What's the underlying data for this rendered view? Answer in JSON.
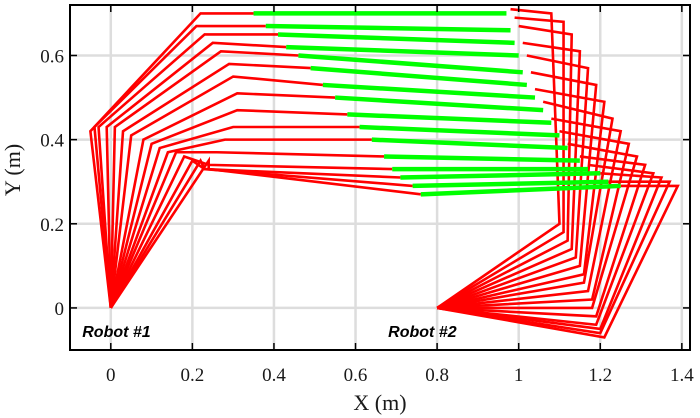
{
  "chart_data": {
    "type": "line",
    "title": "",
    "xlabel": "X (m)",
    "ylabel": "Y (m)",
    "xlim": [
      -0.1,
      1.42
    ],
    "ylim": [
      -0.1,
      0.72
    ],
    "xticks": [
      0,
      0.2,
      0.4,
      0.6,
      0.8,
      1,
      1.2,
      1.4
    ],
    "xtick_labels": [
      "0",
      "0.2",
      "0.4",
      "0.6",
      "0.8",
      "1",
      "1.2",
      "1.4"
    ],
    "yticks": [
      0,
      0.2,
      0.4,
      0.6
    ],
    "ytick_labels": [
      "0",
      "0.2",
      "0.4",
      "0.6"
    ],
    "grid": true,
    "colors": {
      "arm": "#ff0000",
      "object": "#00ff00",
      "grid": "#dddddd",
      "axis": "#000000"
    },
    "annotations": [
      {
        "text": "Robot #1",
        "x": -0.07,
        "y": -0.055
      },
      {
        "text": "Robot #2",
        "x": 0.68,
        "y": -0.055
      }
    ],
    "robot1": {
      "base": [
        0,
        0
      ],
      "configs": [
        [
          [
            -0.05,
            0.42
          ],
          [
            0.22,
            0.7
          ],
          [
            0.35,
            0.7
          ]
        ],
        [
          [
            -0.04,
            0.43
          ],
          [
            0.21,
            0.67
          ],
          [
            0.38,
            0.67
          ]
        ],
        [
          [
            -0.03,
            0.43
          ],
          [
            0.23,
            0.65
          ],
          [
            0.41,
            0.65
          ]
        ],
        [
          [
            -0.01,
            0.43
          ],
          [
            0.25,
            0.63
          ],
          [
            0.43,
            0.62
          ]
        ],
        [
          [
            0.01,
            0.43
          ],
          [
            0.27,
            0.61
          ],
          [
            0.46,
            0.6
          ]
        ],
        [
          [
            0.03,
            0.42
          ],
          [
            0.29,
            0.58
          ],
          [
            0.49,
            0.57
          ]
        ],
        [
          [
            0.05,
            0.41
          ],
          [
            0.3,
            0.55
          ],
          [
            0.52,
            0.53
          ]
        ],
        [
          [
            0.08,
            0.4
          ],
          [
            0.31,
            0.51
          ],
          [
            0.55,
            0.5
          ]
        ],
        [
          [
            0.1,
            0.39
          ],
          [
            0.31,
            0.47
          ],
          [
            0.58,
            0.46
          ]
        ],
        [
          [
            0.12,
            0.38
          ],
          [
            0.3,
            0.43
          ],
          [
            0.61,
            0.43
          ]
        ],
        [
          [
            0.14,
            0.37
          ],
          [
            0.28,
            0.4
          ],
          [
            0.64,
            0.4
          ]
        ],
        [
          [
            0.16,
            0.37
          ],
          [
            0.26,
            0.37
          ],
          [
            0.67,
            0.36
          ]
        ],
        [
          [
            0.18,
            0.36
          ],
          [
            0.24,
            0.34
          ],
          [
            0.69,
            0.33
          ]
        ],
        [
          [
            0.2,
            0.35
          ],
          [
            0.23,
            0.33
          ],
          [
            0.71,
            0.31
          ]
        ],
        [
          [
            0.22,
            0.35
          ],
          [
            0.23,
            0.33
          ],
          [
            0.74,
            0.29
          ]
        ],
        [
          [
            0.24,
            0.35
          ],
          [
            0.24,
            0.33
          ],
          [
            0.76,
            0.27
          ]
        ]
      ]
    },
    "robot2": {
      "base": [
        0.8,
        0
      ],
      "configs": [
        [
          [
            1.21,
            -0.07
          ],
          [
            1.39,
            0.29
          ],
          [
            1.25,
            0.29
          ]
        ],
        [
          [
            1.2,
            -0.06
          ],
          [
            1.37,
            0.3
          ],
          [
            1.22,
            0.3
          ]
        ],
        [
          [
            1.2,
            -0.05
          ],
          [
            1.35,
            0.31
          ],
          [
            1.2,
            0.32
          ]
        ],
        [
          [
            1.19,
            -0.04
          ],
          [
            1.33,
            0.32
          ],
          [
            1.17,
            0.34
          ]
        ],
        [
          [
            1.19,
            -0.02
          ],
          [
            1.31,
            0.34
          ],
          [
            1.15,
            0.36
          ]
        ],
        [
          [
            1.18,
            0.0
          ],
          [
            1.29,
            0.36
          ],
          [
            1.12,
            0.39
          ]
        ],
        [
          [
            1.18,
            0.02
          ],
          [
            1.27,
            0.39
          ],
          [
            1.1,
            0.42
          ]
        ],
        [
          [
            1.17,
            0.04
          ],
          [
            1.25,
            0.42
          ],
          [
            1.08,
            0.45
          ]
        ],
        [
          [
            1.16,
            0.06
          ],
          [
            1.23,
            0.45
          ],
          [
            1.06,
            0.49
          ]
        ],
        [
          [
            1.16,
            0.08
          ],
          [
            1.21,
            0.49
          ],
          [
            1.04,
            0.52
          ]
        ],
        [
          [
            1.15,
            0.1
          ],
          [
            1.19,
            0.53
          ],
          [
            1.03,
            0.56
          ]
        ],
        [
          [
            1.14,
            0.12
          ],
          [
            1.17,
            0.57
          ],
          [
            1.02,
            0.6
          ]
        ],
        [
          [
            1.13,
            0.14
          ],
          [
            1.15,
            0.61
          ],
          [
            1.01,
            0.63
          ]
        ],
        [
          [
            1.12,
            0.16
          ],
          [
            1.13,
            0.65
          ],
          [
            1.0,
            0.67
          ]
        ],
        [
          [
            1.11,
            0.18
          ],
          [
            1.11,
            0.68
          ],
          [
            0.99,
            0.69
          ]
        ],
        [
          [
            1.1,
            0.2
          ],
          [
            1.08,
            0.7
          ],
          [
            0.98,
            0.71
          ]
        ]
      ]
    },
    "object_poses": [
      [
        [
          0.35,
          0.7
        ],
        [
          0.97,
          0.7
        ]
      ],
      [
        [
          0.38,
          0.67
        ],
        [
          0.98,
          0.66
        ]
      ],
      [
        [
          0.41,
          0.65
        ],
        [
          0.99,
          0.63
        ]
      ],
      [
        [
          0.43,
          0.62
        ],
        [
          1.0,
          0.6
        ]
      ],
      [
        [
          0.46,
          0.6
        ],
        [
          1.01,
          0.56
        ]
      ],
      [
        [
          0.49,
          0.57
        ],
        [
          1.02,
          0.53
        ]
      ],
      [
        [
          0.52,
          0.53
        ],
        [
          1.04,
          0.5
        ]
      ],
      [
        [
          0.55,
          0.5
        ],
        [
          1.06,
          0.47
        ]
      ],
      [
        [
          0.58,
          0.46
        ],
        [
          1.08,
          0.44
        ]
      ],
      [
        [
          0.61,
          0.43
        ],
        [
          1.1,
          0.41
        ]
      ],
      [
        [
          0.64,
          0.4
        ],
        [
          1.12,
          0.38
        ]
      ],
      [
        [
          0.67,
          0.36
        ],
        [
          1.15,
          0.35
        ]
      ],
      [
        [
          0.69,
          0.33
        ],
        [
          1.17,
          0.33
        ]
      ],
      [
        [
          0.71,
          0.31
        ],
        [
          1.2,
          0.32
        ]
      ],
      [
        [
          0.74,
          0.29
        ],
        [
          1.22,
          0.3
        ]
      ],
      [
        [
          0.76,
          0.27
        ],
        [
          1.25,
          0.29
        ]
      ]
    ]
  }
}
